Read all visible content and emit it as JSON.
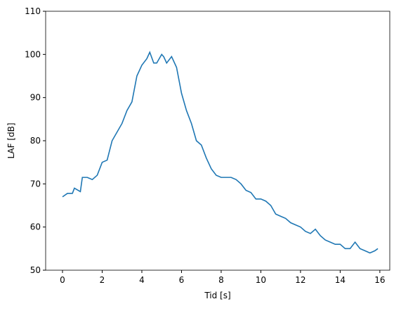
{
  "chart_data": {
    "type": "line",
    "x_label": "Tid [s]",
    "y_label": "LAF [dB]",
    "x": [
      0,
      0.25,
      0.5,
      0.6,
      0.9,
      1.0,
      1.25,
      1.5,
      1.75,
      2.0,
      2.25,
      2.5,
      2.75,
      3.0,
      3.25,
      3.5,
      3.75,
      4.0,
      4.25,
      4.4,
      4.6,
      4.75,
      5.0,
      5.1,
      5.25,
      5.5,
      5.75,
      6.0,
      6.25,
      6.5,
      6.75,
      7.0,
      7.25,
      7.5,
      7.75,
      8.0,
      8.5,
      8.75,
      9.0,
      9.25,
      9.5,
      9.75,
      10.0,
      10.25,
      10.5,
      10.75,
      11.0,
      11.25,
      11.5,
      11.75,
      12.0,
      12.25,
      12.5,
      12.75,
      13.0,
      13.25,
      13.5,
      13.75,
      14.0,
      14.25,
      14.5,
      14.75,
      15.0,
      15.25,
      15.5,
      15.75,
      15.9
    ],
    "series": [
      {
        "name": "LAF",
        "color": "#1f77b4",
        "values": [
          67,
          67.8,
          67.8,
          69,
          68.2,
          71.5,
          71.5,
          71,
          72,
          75,
          75.5,
          80,
          82,
          84,
          87,
          89,
          95,
          97.5,
          99,
          100.5,
          98,
          98,
          100,
          99.5,
          98,
          99.5,
          97,
          91,
          87,
          84,
          80,
          79,
          76,
          73.5,
          72,
          71.5,
          71.5,
          71,
          70,
          68.5,
          68,
          66.5,
          66.5,
          66,
          65,
          63,
          62.5,
          62,
          61,
          60.5,
          60,
          59,
          58.5,
          59.5,
          58,
          57,
          56.5,
          56,
          56,
          55,
          55,
          56.5,
          55,
          54.5,
          54,
          54.5,
          55
        ]
      }
    ],
    "xlim": [
      -0.85,
      16.5
    ],
    "ylim": [
      50,
      110
    ],
    "xticks": [
      0,
      2,
      4,
      6,
      8,
      10,
      12,
      14,
      16
    ],
    "yticks": [
      50,
      60,
      70,
      80,
      90,
      100,
      110
    ]
  }
}
